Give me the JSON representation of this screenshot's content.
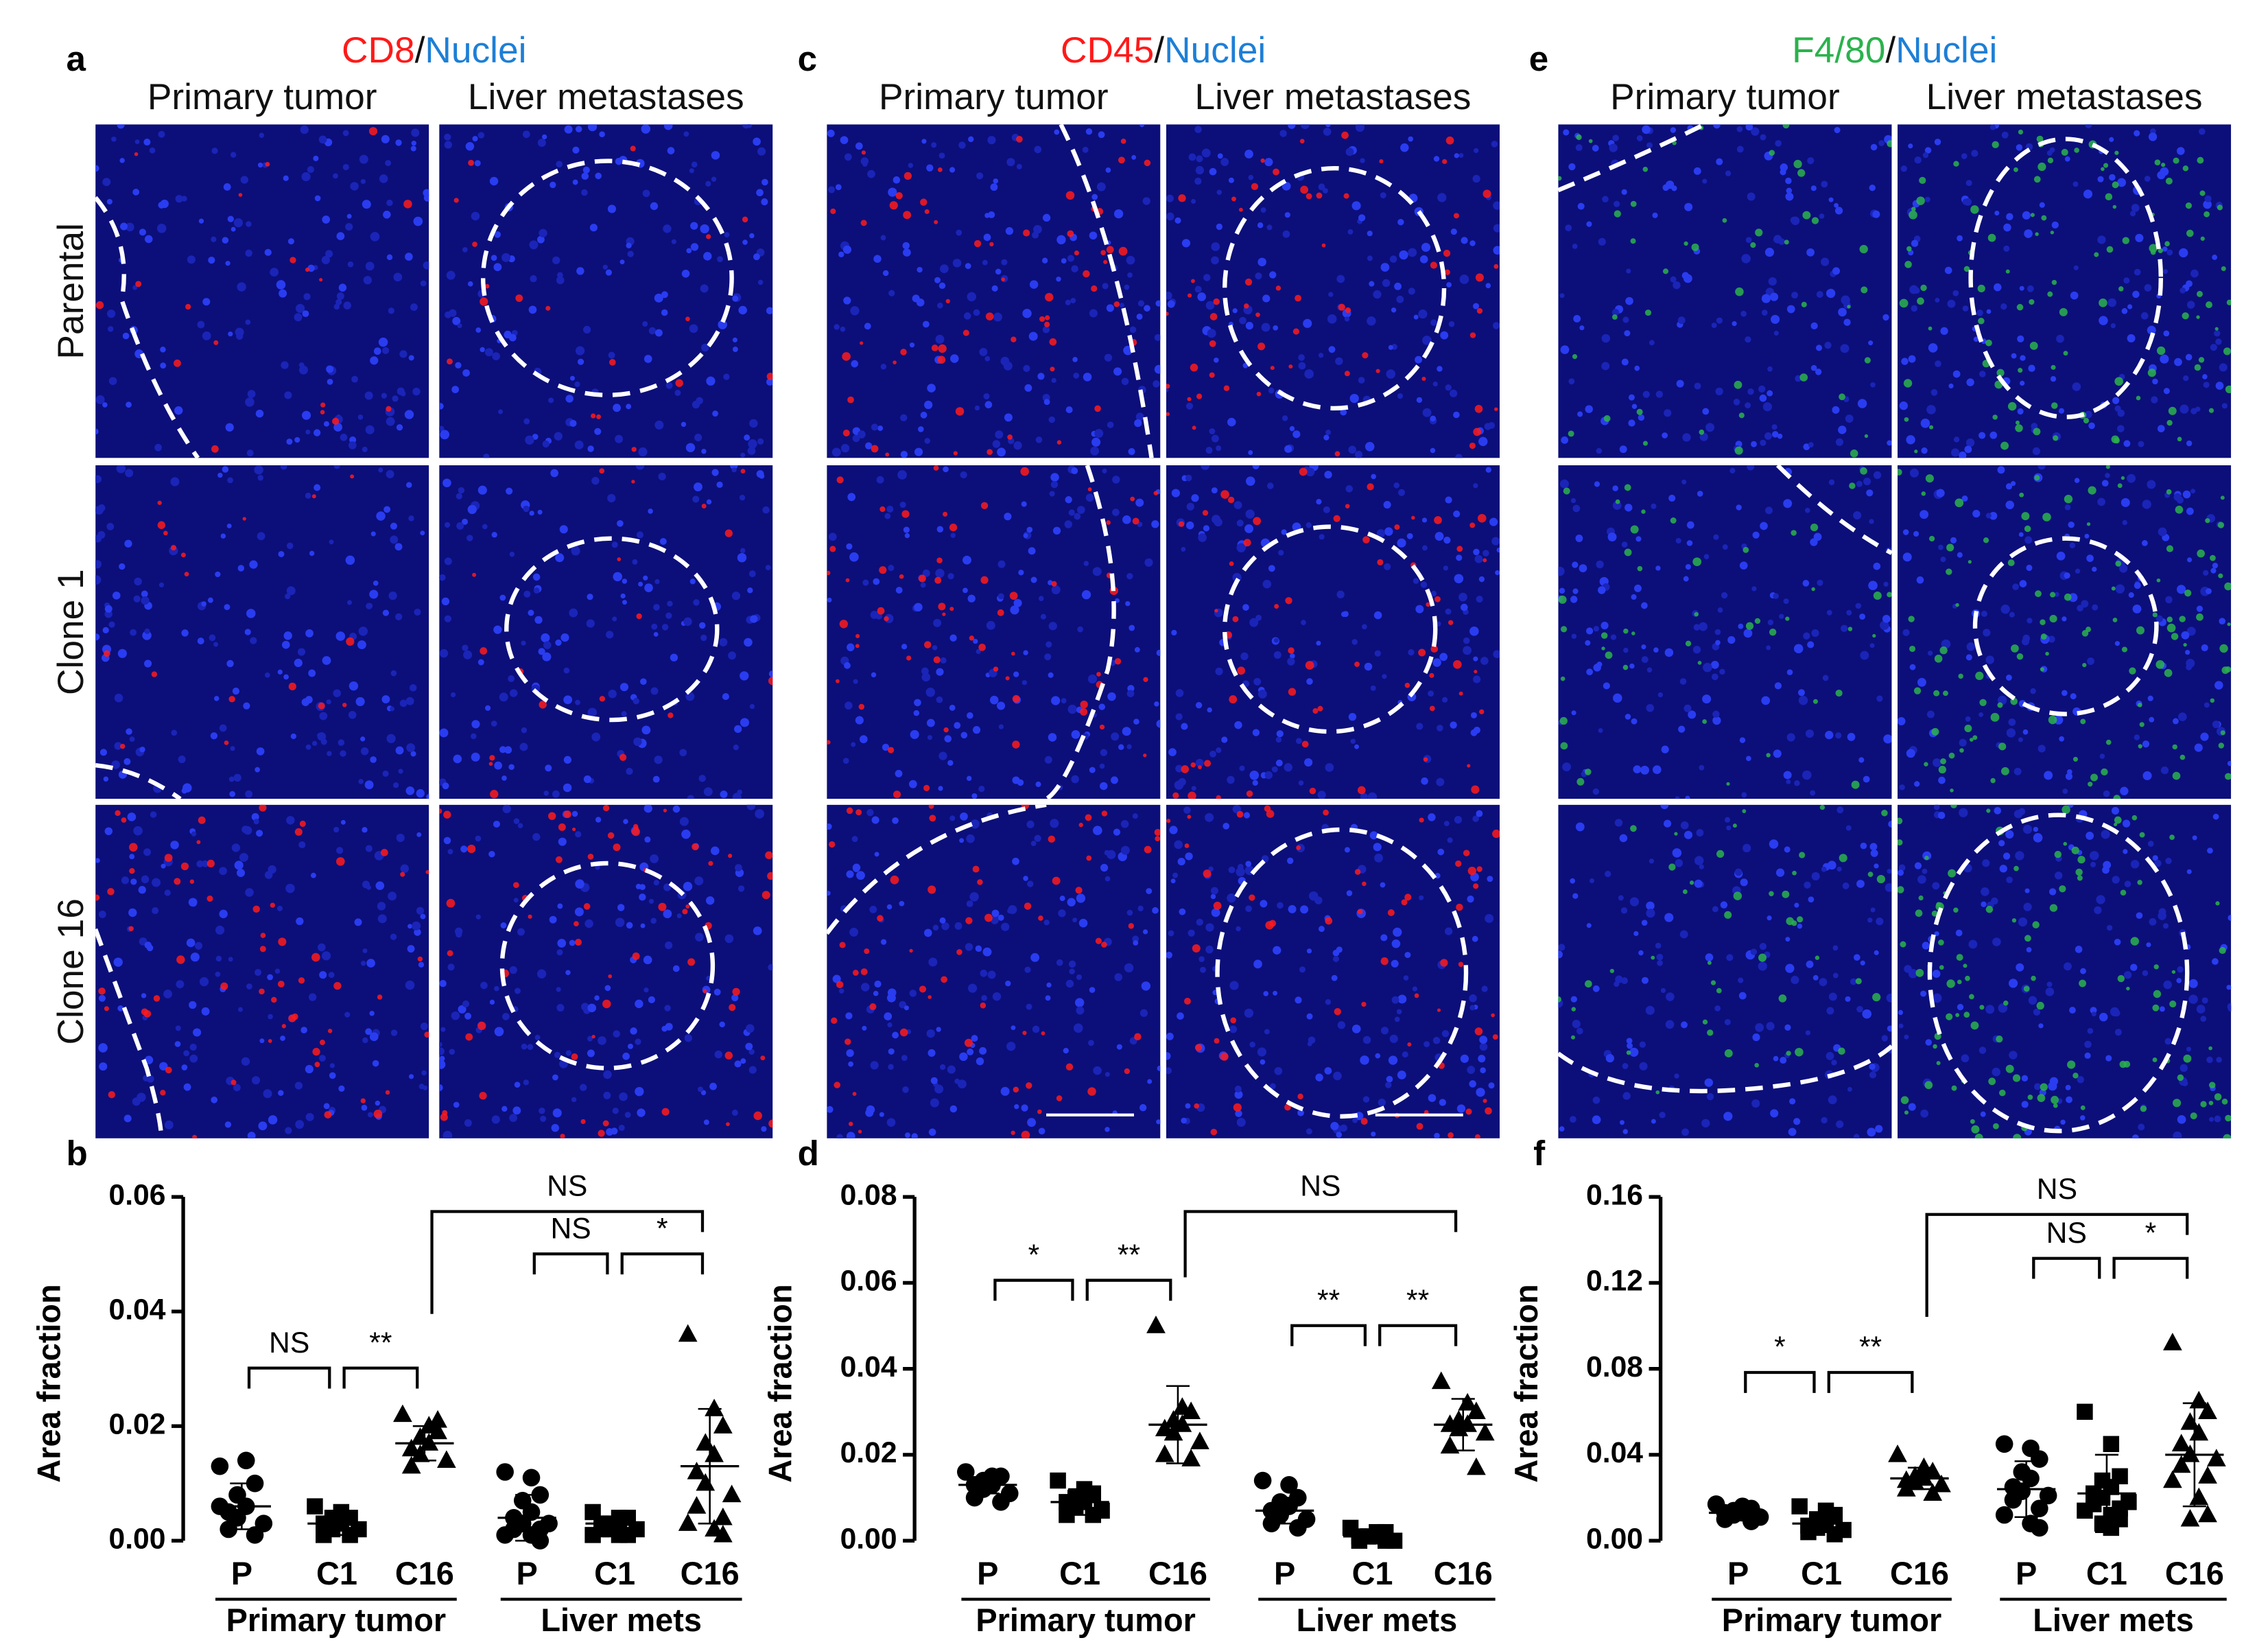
{
  "figure": {
    "panels": [
      {
        "letter": "a",
        "marker": "CD8",
        "separator": "/",
        "nuclei": "Nuclei",
        "marker_color": "#ff1a1a",
        "nuclei_color": "#1e7fd6",
        "columns": [
          "Primary tumor",
          "Liver metastases"
        ]
      },
      {
        "letter": "c",
        "marker": "CD45",
        "separator": "/",
        "nuclei": "Nuclei",
        "marker_color": "#ff1a1a",
        "nuclei_color": "#1e7fd6",
        "columns": [
          "Primary tumor",
          "Liver metastases"
        ]
      },
      {
        "letter": "e",
        "marker": "F4/80",
        "separator": "/",
        "nuclei": "Nuclei",
        "marker_color": "#2bb24c",
        "nuclei_color": "#1e7fd6",
        "columns": [
          "Primary tumor",
          "Liver metastases"
        ]
      }
    ],
    "rows": [
      "Parental",
      "Clone 1",
      "Clone 16"
    ]
  },
  "chart_data": [
    {
      "type": "dotplot",
      "label": "b",
      "ylabel": "Area fraction",
      "categories": [
        "P",
        "C1",
        "C16",
        "P",
        "C1",
        "C16"
      ],
      "groups": [
        "Primary tumor",
        "Liver mets"
      ],
      "markers": [
        "circle",
        "square",
        "triangle",
        "circle",
        "square",
        "triangle"
      ],
      "color": "#000000",
      "points": [
        [
          0.013,
          0.014,
          0.01,
          0.008,
          0.006,
          0.005,
          0.004,
          0.003,
          0.002,
          0.001,
          0.006
        ],
        [
          0.006,
          0.005,
          0.004,
          0.004,
          0.003,
          0.003,
          0.002,
          0.002,
          0.001,
          0.001
        ],
        [
          0.022,
          0.02,
          0.019,
          0.018,
          0.017,
          0.016,
          0.015,
          0.014,
          0.013,
          0.021
        ],
        [
          0.012,
          0.011,
          0.008,
          0.007,
          0.005,
          0.004,
          0.003,
          0.003,
          0.002,
          0.002,
          0.001,
          0.001,
          0.0
        ],
        [
          0.005,
          0.004,
          0.004,
          0.003,
          0.003,
          0.003,
          0.002,
          0.002,
          0.002,
          0.001,
          0.001,
          0.001
        ],
        [
          0.036,
          0.023,
          0.02,
          0.017,
          0.015,
          0.012,
          0.01,
          0.008,
          0.006,
          0.004,
          0.003,
          0.002,
          0.001
        ]
      ],
      "means": [
        0.006,
        0.003,
        0.017,
        0.004,
        0.003,
        0.013
      ],
      "sd": [
        0.004,
        0.002,
        0.003,
        0.004,
        0.001,
        0.01
      ],
      "ylim": [
        0,
        0.06
      ],
      "yticks": [
        {
          "value": 0,
          "label": "0.00"
        },
        {
          "value": 0.02,
          "label": "0.02"
        },
        {
          "value": 0.04,
          "label": "0.04"
        },
        {
          "value": 0.06,
          "label": "0.06"
        }
      ],
      "annotations": [
        "NS",
        "**",
        "NS",
        "NS",
        "*"
      ]
    },
    {
      "type": "dotplot",
      "label": "d",
      "ylabel": "Area fraction",
      "categories": [
        "P",
        "C1",
        "C16",
        "P",
        "C1",
        "C16"
      ],
      "groups": [
        "Primary tumor",
        "Liver mets"
      ],
      "markers": [
        "circle",
        "square",
        "triangle",
        "circle",
        "square",
        "triangle"
      ],
      "color": "#000000",
      "points": [
        [
          0.016,
          0.015,
          0.015,
          0.014,
          0.013,
          0.013,
          0.012,
          0.011,
          0.01,
          0.009
        ],
        [
          0.014,
          0.012,
          0.011,
          0.01,
          0.009,
          0.009,
          0.008,
          0.007,
          0.006,
          0.006
        ],
        [
          0.05,
          0.031,
          0.03,
          0.028,
          0.027,
          0.026,
          0.025,
          0.023,
          0.02,
          0.019
        ],
        [
          0.014,
          0.013,
          0.01,
          0.009,
          0.008,
          0.007,
          0.006,
          0.005,
          0.004,
          0.003
        ],
        [
          0.003,
          0.002,
          0.002,
          0.001,
          0.001,
          0.001,
          0.001,
          0.0,
          0.0,
          0.0
        ],
        [
          0.037,
          0.032,
          0.03,
          0.028,
          0.027,
          0.027,
          0.026,
          0.025,
          0.022,
          0.017
        ]
      ],
      "means": [
        0.013,
        0.009,
        0.027,
        0.007,
        0.001,
        0.027
      ],
      "sd": [
        0.002,
        0.003,
        0.009,
        0.003,
        0.001,
        0.006
      ],
      "ylim": [
        0,
        0.08
      ],
      "yticks": [
        {
          "value": 0,
          "label": "0.00"
        },
        {
          "value": 0.02,
          "label": "0.02"
        },
        {
          "value": 0.04,
          "label": "0.04"
        },
        {
          "value": 0.06,
          "label": "0.06"
        },
        {
          "value": 0.08,
          "label": "0.08"
        }
      ],
      "annotations": [
        "*",
        "**",
        "NS",
        "**",
        "**"
      ]
    },
    {
      "type": "dotplot",
      "label": "f",
      "ylabel": "Area fraction",
      "categories": [
        "P",
        "C1",
        "C16",
        "P",
        "C1",
        "C16"
      ],
      "groups": [
        "Primary tumor",
        "Liver mets"
      ],
      "markers": [
        "circle",
        "square",
        "triangle",
        "circle",
        "square",
        "triangle"
      ],
      "color": "#000000",
      "points": [
        [
          0.017,
          0.016,
          0.015,
          0.014,
          0.013,
          0.013,
          0.012,
          0.011,
          0.01,
          0.009
        ],
        [
          0.016,
          0.014,
          0.012,
          0.01,
          0.008,
          0.007,
          0.006,
          0.005,
          0.004,
          0.003
        ],
        [
          0.04,
          0.034,
          0.032,
          0.03,
          0.029,
          0.028,
          0.027,
          0.026,
          0.024,
          0.022
        ],
        [
          0.045,
          0.043,
          0.038,
          0.032,
          0.029,
          0.025,
          0.023,
          0.021,
          0.019,
          0.015,
          0.012,
          0.008,
          0.006
        ],
        [
          0.06,
          0.045,
          0.03,
          0.028,
          0.025,
          0.022,
          0.02,
          0.018,
          0.017,
          0.015,
          0.014,
          0.012,
          0.01,
          0.008,
          0.006
        ],
        [
          0.092,
          0.065,
          0.06,
          0.055,
          0.05,
          0.045,
          0.04,
          0.038,
          0.035,
          0.03,
          0.028,
          0.02,
          0.012,
          0.01
        ]
      ],
      "means": [
        0.013,
        0.008,
        0.029,
        0.024,
        0.022,
        0.04
      ],
      "sd": [
        0.002,
        0.004,
        0.005,
        0.013,
        0.018,
        0.024
      ],
      "ylim": [
        0,
        0.16
      ],
      "yticks": [
        {
          "value": 0,
          "label": "0.00"
        },
        {
          "value": 0.04,
          "label": "0.04"
        },
        {
          "value": 0.08,
          "label": "0.08"
        },
        {
          "value": 0.12,
          "label": "0.12"
        },
        {
          "value": 0.16,
          "label": "0.16"
        }
      ],
      "annotations": [
        "*",
        "**",
        "NS",
        "NS",
        "*"
      ]
    }
  ]
}
